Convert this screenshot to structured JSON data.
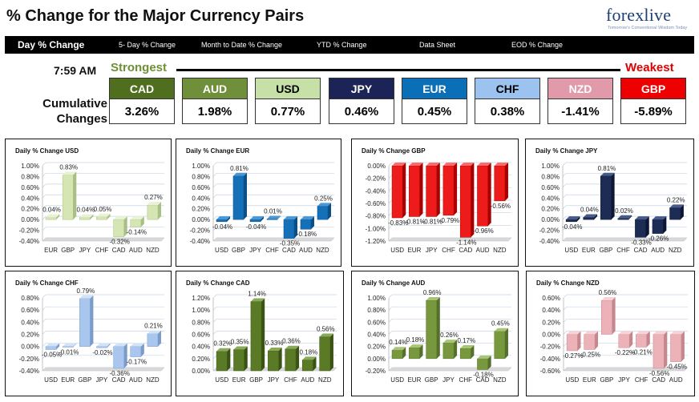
{
  "header": {
    "title": "% Change for the Major Currency Pairs",
    "logo_text": "forexlive",
    "logo_tagline": "Tomorrow's Conventional Wisdom Today"
  },
  "nav": {
    "items": [
      {
        "label": "Day % Change",
        "active": true
      },
      {
        "label": "5- Day % Change",
        "active": false
      },
      {
        "label": "Month to Date % Change",
        "active": false
      },
      {
        "label": "YTD % Change",
        "active": false
      },
      {
        "label": "Data Sheet",
        "active": false
      },
      {
        "label": "EOD % Change",
        "active": false
      }
    ]
  },
  "summary": {
    "time": "7:59 AM",
    "strongest_label": "Strongest",
    "weakest_label": "Weakest",
    "cumulative_label_line1": "Cumulative",
    "cumulative_label_line2": "Changes",
    "currencies": [
      {
        "code": "CAD",
        "value": "3.26%",
        "bg": "#4f6f1f",
        "fg": "#ffffff"
      },
      {
        "code": "AUD",
        "value": "1.98%",
        "bg": "#6f8f3b",
        "fg": "#ffffff"
      },
      {
        "code": "USD",
        "value": "0.77%",
        "bg": "#c7e0a7",
        "fg": "#000000"
      },
      {
        "code": "JPY",
        "value": "0.46%",
        "bg": "#1c2457",
        "fg": "#ffffff"
      },
      {
        "code": "EUR",
        "value": "0.45%",
        "bg": "#0b6fb8",
        "fg": "#ffffff"
      },
      {
        "code": "CHF",
        "value": "0.38%",
        "bg": "#9cc2f0",
        "fg": "#000000"
      },
      {
        "code": "NZD",
        "value": "-1.41%",
        "bg": "#e09aaa",
        "fg": "#ffffff"
      },
      {
        "code": "GBP",
        "value": "-5.89%",
        "bg": "#ee0000",
        "fg": "#ffffff"
      }
    ]
  },
  "colors": {
    "USD": {
      "face": "#d5e6b3",
      "top": "#e8f3d6",
      "side": "#a9bf85"
    },
    "EUR": {
      "face": "#1670b8",
      "top": "#4a97d6",
      "side": "#0c4f86"
    },
    "GBP": {
      "face": "#ee1b1b",
      "top": "#ff6a6a",
      "side": "#a80000"
    },
    "JPY": {
      "face": "#1d2c55",
      "top": "#475a8a",
      "side": "#0d1633"
    },
    "CHF": {
      "face": "#a9c7ee",
      "top": "#d2e3f8",
      "side": "#7b9ccb"
    },
    "CAD": {
      "face": "#5a7a26",
      "top": "#8aa95a",
      "side": "#3a5214"
    },
    "AUD": {
      "face": "#78983e",
      "top": "#a8c474",
      "side": "#55702a"
    },
    "NZD": {
      "face": "#ecb2b8",
      "top": "#f7d3d6",
      "side": "#c4878e"
    }
  },
  "chart_data": [
    {
      "type": "bar",
      "title": "Daily % Change USD",
      "categories": [
        "EUR",
        "GBP",
        "JPY",
        "CHF",
        "CAD",
        "AUD",
        "NZD"
      ],
      "values": [
        0.04,
        0.83,
        0.04,
        0.05,
        -0.32,
        -0.14,
        0.27
      ],
      "labels": [
        "0.04%",
        "0.83%",
        "0.04%",
        "0.05%",
        "-0.32%",
        "-0.14%",
        "0.27%"
      ],
      "ylim": [
        -0.4,
        1.0
      ],
      "yticks": [
        "1.00%",
        "0.80%",
        "0.60%",
        "0.40%",
        "0.20%",
        "0.00%",
        "-0.20%",
        "-0.40%"
      ],
      "color_key": "USD"
    },
    {
      "type": "bar",
      "title": "Daily % Change EUR",
      "categories": [
        "USD",
        "GBP",
        "JPY",
        "CHF",
        "CAD",
        "AUD",
        "NZD"
      ],
      "values": [
        -0.04,
        0.81,
        -0.04,
        0.01,
        -0.35,
        -0.18,
        0.25
      ],
      "labels": [
        "-0.04%",
        "0.81%",
        "-0.04%",
        "0.01%",
        "-0.35%",
        "-0.18%",
        "0.25%"
      ],
      "ylim": [
        -0.4,
        1.0
      ],
      "yticks": [
        "1.00%",
        "0.80%",
        "0.60%",
        "0.40%",
        "0.20%",
        "0.00%",
        "-0.20%",
        "-0.40%"
      ],
      "color_key": "EUR"
    },
    {
      "type": "bar",
      "title": "Daily % Change GBP",
      "categories": [
        "USD",
        "EUR",
        "JPY",
        "CHF",
        "CAD",
        "AUD",
        "NZD"
      ],
      "values": [
        -0.83,
        -0.81,
        -0.81,
        -0.79,
        -1.14,
        -0.96,
        -0.56
      ],
      "labels": [
        "-0.83%",
        "-0.81%",
        "-0.81%",
        "-0.79%",
        "-1.14%",
        "-0.96%",
        "-0.56%"
      ],
      "ylim": [
        -1.2,
        0.0
      ],
      "yticks": [
        "0.00%",
        "-0.20%",
        "-0.40%",
        "-0.60%",
        "-0.80%",
        "-1.00%",
        "-1.20%"
      ],
      "color_key": "GBP"
    },
    {
      "type": "bar",
      "title": "Daily % Change JPY",
      "categories": [
        "USD",
        "EUR",
        "GBP",
        "CHF",
        "CAD",
        "AUD",
        "NZD"
      ],
      "values": [
        -0.04,
        0.04,
        0.81,
        0.02,
        -0.33,
        -0.26,
        0.22
      ],
      "labels": [
        "-0.04%",
        "0.04%",
        "0.81%",
        "0.02%",
        "-0.33%",
        "-0.26%",
        "0.22%"
      ],
      "ylim": [
        -0.4,
        1.0
      ],
      "yticks": [
        "1.00%",
        "0.80%",
        "0.60%",
        "0.40%",
        "0.20%",
        "0.00%",
        "-0.20%",
        "-0.40%"
      ],
      "color_key": "JPY"
    },
    {
      "type": "bar",
      "title": "Daily % Change CHF",
      "categories": [
        "USD",
        "EUR",
        "GBP",
        "JPY",
        "CAD",
        "AUD",
        "NZD"
      ],
      "values": [
        -0.05,
        -0.01,
        0.79,
        -0.02,
        -0.36,
        -0.17,
        0.21
      ],
      "labels": [
        "-0.05%",
        "-0.01%",
        "0.79%",
        "-0.02%",
        "-0.36%",
        "-0.17%",
        "0.21%"
      ],
      "ylim": [
        -0.4,
        0.8
      ],
      "yticks": [
        "0.80%",
        "0.60%",
        "0.40%",
        "0.20%",
        "0.00%",
        "-0.20%",
        "-0.40%"
      ],
      "color_key": "CHF"
    },
    {
      "type": "bar",
      "title": "Daily % Change CAD",
      "categories": [
        "USD",
        "EUR",
        "GBP",
        "JPY",
        "CHF",
        "AUD",
        "NZD"
      ],
      "values": [
        0.32,
        0.35,
        1.14,
        0.33,
        0.36,
        0.18,
        0.56
      ],
      "labels": [
        "0.32%",
        "0.35%",
        "1.14%",
        "0.33%",
        "0.36%",
        "0.18%",
        "0.56%"
      ],
      "ylim": [
        0.0,
        1.2
      ],
      "yticks": [
        "1.20%",
        "1.00%",
        "0.80%",
        "0.60%",
        "0.40%",
        "0.20%",
        "0.00%"
      ],
      "color_key": "CAD"
    },
    {
      "type": "bar",
      "title": "Daily % Change AUD",
      "categories": [
        "USD",
        "EUR",
        "GBP",
        "JPY",
        "CHF",
        "CAD",
        "NZD"
      ],
      "values": [
        0.14,
        0.18,
        0.96,
        0.26,
        0.17,
        -0.18,
        0.45
      ],
      "labels": [
        "0.14%",
        "0.18%",
        "0.96%",
        "0.26%",
        "0.17%",
        "-0.18%",
        "0.45%"
      ],
      "ylim": [
        -0.2,
        1.0
      ],
      "yticks": [
        "1.00%",
        "0.80%",
        "0.60%",
        "0.40%",
        "0.20%",
        "0.00%",
        "-0.20%"
      ],
      "color_key": "AUD"
    },
    {
      "type": "bar",
      "title": "Daily % Change NZD",
      "categories": [
        "USD",
        "EUR",
        "GBP",
        "JPY",
        "CHF",
        "CAD",
        "AUD"
      ],
      "values": [
        -0.27,
        -0.25,
        0.56,
        -0.22,
        -0.21,
        -0.56,
        -0.45
      ],
      "labels": [
        "-0.27%",
        "-0.25%",
        "0.56%",
        "-0.22%",
        "-0.21%",
        "-0.56%",
        "-0.45%"
      ],
      "ylim": [
        -0.6,
        0.6
      ],
      "yticks": [
        "0.60%",
        "0.40%",
        "0.20%",
        "0.00%",
        "-0.20%",
        "-0.40%",
        "-0.60%"
      ],
      "color_key": "NZD"
    }
  ]
}
